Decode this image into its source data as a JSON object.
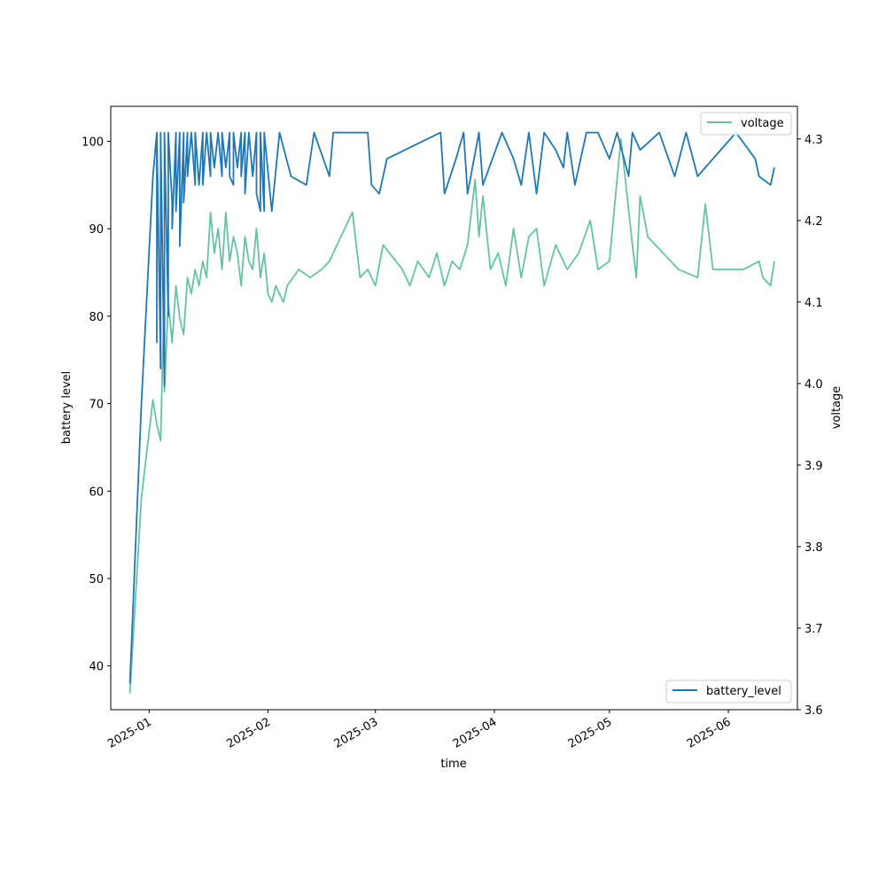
{
  "chart_data": {
    "type": "line",
    "title": "",
    "xlabel": "time",
    "ylabel_left": "battery level",
    "ylabel_right": "voltage",
    "x_axis": {
      "kind": "date",
      "range": [
        "2024-12-22",
        "2025-06-19"
      ],
      "ticks": [
        "2025-01-01",
        "2025-02-01",
        "2025-03-01",
        "2025-04-01",
        "2025-05-01",
        "2025-06-01"
      ],
      "tick_labels": [
        "2025-01",
        "2025-02",
        "2025-03",
        "2025-04",
        "2025-05",
        "2025-06"
      ]
    },
    "y_left": {
      "range": [
        35,
        104
      ],
      "ticks": [
        40,
        50,
        60,
        70,
        80,
        90,
        100
      ]
    },
    "y_right": {
      "range": [
        3.6,
        4.34
      ],
      "ticks": [
        3.6,
        3.7,
        3.8,
        3.9,
        4.0,
        4.1,
        4.2,
        4.3
      ],
      "tick_labels": [
        "3.6",
        "3.7",
        "3.8",
        "3.9",
        "4.0",
        "4.1",
        "4.2",
        "4.3"
      ]
    },
    "series": [
      {
        "name": "battery_level",
        "axis": "left",
        "color": "#1f77b4",
        "legend": "lower-right",
        "points": [
          [
            "2024-12-27",
            38
          ],
          [
            "2024-12-30",
            70
          ],
          [
            "2025-01-02",
            96
          ],
          [
            "2025-01-03",
            101
          ],
          [
            "2025-01-03",
            77
          ],
          [
            "2025-01-03",
            101
          ],
          [
            "2025-01-04",
            74
          ],
          [
            "2025-01-04",
            101
          ],
          [
            "2025-01-05",
            72
          ],
          [
            "2025-01-05",
            101
          ],
          [
            "2025-01-06",
            80
          ],
          [
            "2025-01-06",
            101
          ],
          [
            "2025-01-07",
            93
          ],
          [
            "2025-01-07",
            90
          ],
          [
            "2025-01-08",
            101
          ],
          [
            "2025-01-08",
            92
          ],
          [
            "2025-01-09",
            101
          ],
          [
            "2025-01-09",
            88
          ],
          [
            "2025-01-10",
            101
          ],
          [
            "2025-01-10",
            93
          ],
          [
            "2025-01-11",
            101
          ],
          [
            "2025-01-11",
            96
          ],
          [
            "2025-01-12",
            101
          ],
          [
            "2025-01-13",
            95
          ],
          [
            "2025-01-13",
            101
          ],
          [
            "2025-01-14",
            95
          ],
          [
            "2025-01-15",
            101
          ],
          [
            "2025-01-15",
            95
          ],
          [
            "2025-01-16",
            101
          ],
          [
            "2025-01-17",
            96
          ],
          [
            "2025-01-17",
            101
          ],
          [
            "2025-01-18",
            97
          ],
          [
            "2025-01-19",
            101
          ],
          [
            "2025-01-20",
            96
          ],
          [
            "2025-01-20",
            101
          ],
          [
            "2025-01-21",
            97
          ],
          [
            "2025-01-22",
            101
          ],
          [
            "2025-01-22",
            96
          ],
          [
            "2025-01-23",
            95
          ],
          [
            "2025-01-23",
            101
          ],
          [
            "2025-01-24",
            97
          ],
          [
            "2025-01-25",
            101
          ],
          [
            "2025-01-25",
            96
          ],
          [
            "2025-01-26",
            101
          ],
          [
            "2025-01-26",
            94
          ],
          [
            "2025-01-27",
            101
          ],
          [
            "2025-01-28",
            96
          ],
          [
            "2025-01-29",
            101
          ],
          [
            "2025-01-29",
            94
          ],
          [
            "2025-01-30",
            92
          ],
          [
            "2025-01-30",
            101
          ],
          [
            "2025-01-31",
            92
          ],
          [
            "2025-01-31",
            101
          ],
          [
            "2025-02-02",
            92
          ],
          [
            "2025-02-04",
            101
          ],
          [
            "2025-02-07",
            96
          ],
          [
            "2025-02-11",
            95
          ],
          [
            "2025-02-13",
            101
          ],
          [
            "2025-02-17",
            96
          ],
          [
            "2025-02-18",
            101
          ],
          [
            "2025-02-27",
            101
          ],
          [
            "2025-02-28",
            95
          ],
          [
            "2025-03-02",
            94
          ],
          [
            "2025-03-04",
            98
          ],
          [
            "2025-03-18",
            101
          ],
          [
            "2025-03-19",
            94
          ],
          [
            "2025-03-22",
            98
          ],
          [
            "2025-03-24",
            101
          ],
          [
            "2025-03-25",
            94
          ],
          [
            "2025-03-28",
            101
          ],
          [
            "2025-03-29",
            95
          ],
          [
            "2025-04-03",
            101
          ],
          [
            "2025-04-06",
            98
          ],
          [
            "2025-04-08",
            95
          ],
          [
            "2025-04-10",
            101
          ],
          [
            "2025-04-12",
            94
          ],
          [
            "2025-04-14",
            101
          ],
          [
            "2025-04-17",
            99
          ],
          [
            "2025-04-19",
            97
          ],
          [
            "2025-04-20",
            101
          ],
          [
            "2025-04-22",
            95
          ],
          [
            "2025-04-25",
            101
          ],
          [
            "2025-04-28",
            101
          ],
          [
            "2025-05-01",
            98
          ],
          [
            "2025-05-03",
            101
          ],
          [
            "2025-05-06",
            96
          ],
          [
            "2025-05-07",
            101
          ],
          [
            "2025-05-09",
            99
          ],
          [
            "2025-05-14",
            101
          ],
          [
            "2025-05-18",
            96
          ],
          [
            "2025-05-21",
            101
          ],
          [
            "2025-05-24",
            96
          ],
          [
            "2025-06-03",
            101
          ],
          [
            "2025-06-08",
            98
          ],
          [
            "2025-06-09",
            96
          ],
          [
            "2025-06-12",
            95
          ],
          [
            "2025-06-13",
            97
          ]
        ]
      },
      {
        "name": "voltage",
        "axis": "right",
        "color": "#66c2a5",
        "legend": "upper-right",
        "points": [
          [
            "2024-12-27",
            3.62
          ],
          [
            "2024-12-30",
            3.86
          ],
          [
            "2025-01-02",
            3.98
          ],
          [
            "2025-01-03",
            3.95
          ],
          [
            "2025-01-04",
            3.93
          ],
          [
            "2025-01-05",
            4.12
          ],
          [
            "2025-01-05",
            3.99
          ],
          [
            "2025-01-06",
            4.1
          ],
          [
            "2025-01-07",
            4.05
          ],
          [
            "2025-01-08",
            4.12
          ],
          [
            "2025-01-09",
            4.08
          ],
          [
            "2025-01-10",
            4.06
          ],
          [
            "2025-01-11",
            4.13
          ],
          [
            "2025-01-12",
            4.11
          ],
          [
            "2025-01-13",
            4.14
          ],
          [
            "2025-01-14",
            4.12
          ],
          [
            "2025-01-15",
            4.15
          ],
          [
            "2025-01-16",
            4.13
          ],
          [
            "2025-01-17",
            4.21
          ],
          [
            "2025-01-18",
            4.16
          ],
          [
            "2025-01-19",
            4.19
          ],
          [
            "2025-01-20",
            4.14
          ],
          [
            "2025-01-21",
            4.21
          ],
          [
            "2025-01-22",
            4.15
          ],
          [
            "2025-01-23",
            4.18
          ],
          [
            "2025-01-24",
            4.16
          ],
          [
            "2025-01-25",
            4.12
          ],
          [
            "2025-01-26",
            4.18
          ],
          [
            "2025-01-27",
            4.15
          ],
          [
            "2025-01-28",
            4.14
          ],
          [
            "2025-01-29",
            4.19
          ],
          [
            "2025-01-30",
            4.13
          ],
          [
            "2025-01-31",
            4.16
          ],
          [
            "2025-02-01",
            4.11
          ],
          [
            "2025-02-02",
            4.1
          ],
          [
            "2025-02-03",
            4.12
          ],
          [
            "2025-02-05",
            4.1
          ],
          [
            "2025-02-06",
            4.12
          ],
          [
            "2025-02-09",
            4.14
          ],
          [
            "2025-02-12",
            4.13
          ],
          [
            "2025-02-15",
            4.14
          ],
          [
            "2025-02-17",
            4.15
          ],
          [
            "2025-02-19",
            4.17
          ],
          [
            "2025-02-23",
            4.21
          ],
          [
            "2025-02-25",
            4.13
          ],
          [
            "2025-02-27",
            4.14
          ],
          [
            "2025-03-01",
            4.12
          ],
          [
            "2025-03-03",
            4.17
          ],
          [
            "2025-03-08",
            4.14
          ],
          [
            "2025-03-10",
            4.12
          ],
          [
            "2025-03-12",
            4.15
          ],
          [
            "2025-03-15",
            4.13
          ],
          [
            "2025-03-17",
            4.16
          ],
          [
            "2025-03-19",
            4.12
          ],
          [
            "2025-03-21",
            4.15
          ],
          [
            "2025-03-23",
            4.14
          ],
          [
            "2025-03-25",
            4.17
          ],
          [
            "2025-03-27",
            4.25
          ],
          [
            "2025-03-28",
            4.18
          ],
          [
            "2025-03-29",
            4.23
          ],
          [
            "2025-03-31",
            4.14
          ],
          [
            "2025-04-02",
            4.16
          ],
          [
            "2025-04-04",
            4.12
          ],
          [
            "2025-04-06",
            4.19
          ],
          [
            "2025-04-08",
            4.13
          ],
          [
            "2025-04-10",
            4.18
          ],
          [
            "2025-04-12",
            4.19
          ],
          [
            "2025-04-14",
            4.12
          ],
          [
            "2025-04-17",
            4.17
          ],
          [
            "2025-04-20",
            4.14
          ],
          [
            "2025-04-23",
            4.16
          ],
          [
            "2025-04-26",
            4.2
          ],
          [
            "2025-04-28",
            4.14
          ],
          [
            "2025-05-01",
            4.15
          ],
          [
            "2025-05-04",
            4.3
          ],
          [
            "2025-05-07",
            4.17
          ],
          [
            "2025-05-08",
            4.13
          ],
          [
            "2025-05-09",
            4.23
          ],
          [
            "2025-05-11",
            4.18
          ],
          [
            "2025-05-19",
            4.14
          ],
          [
            "2025-05-24",
            4.13
          ],
          [
            "2025-05-26",
            4.22
          ],
          [
            "2025-05-28",
            4.14
          ],
          [
            "2025-06-05",
            4.14
          ],
          [
            "2025-06-09",
            4.15
          ],
          [
            "2025-06-10",
            4.13
          ],
          [
            "2025-06-12",
            4.12
          ],
          [
            "2025-06-13",
            4.15
          ]
        ]
      }
    ]
  }
}
